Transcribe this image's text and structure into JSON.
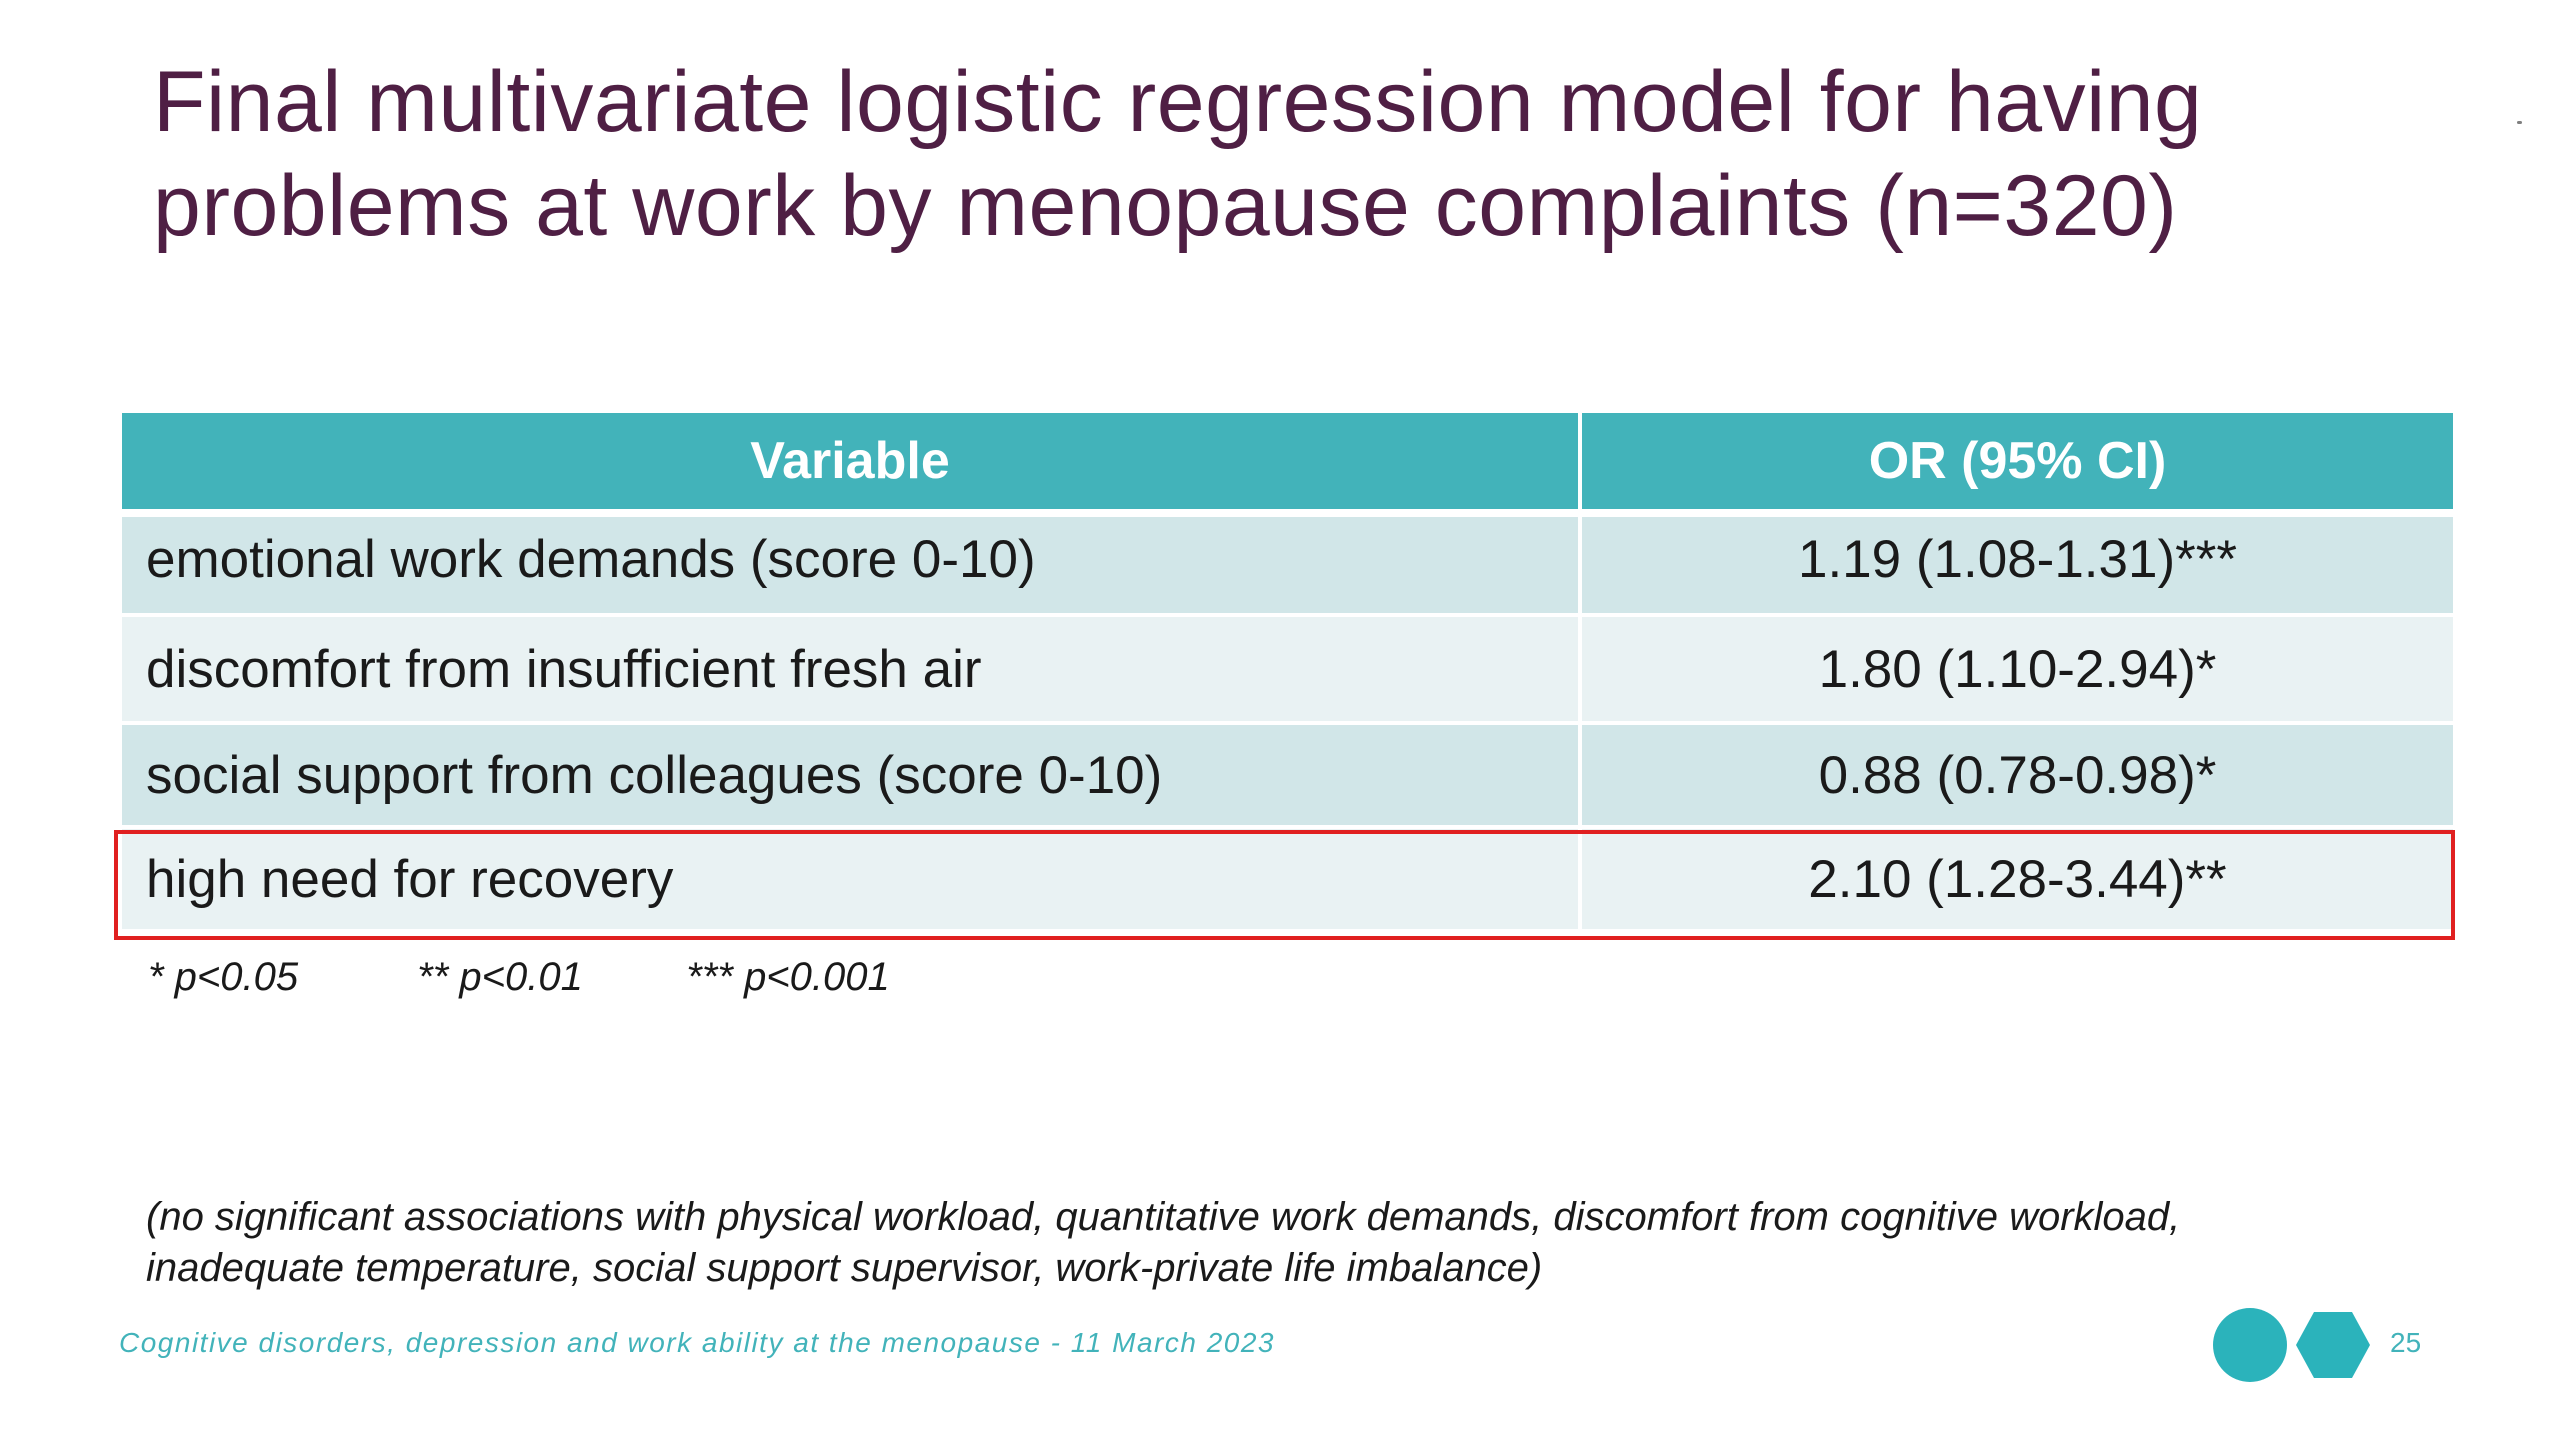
{
  "slide": {
    "title_lines": [
      "Final multivariate logistic regression model for having",
      "problems at work by menopause complaints (n=320)"
    ],
    "table": {
      "headers": [
        "Variable",
        "OR (95% CI)"
      ],
      "rows": [
        {
          "variable": "emotional work demands (score 0-10)",
          "or_ci": "1.19 (1.08-1.31)***",
          "highlighted": false
        },
        {
          "variable": "discomfort from insufficient fresh air",
          "or_ci": "1.80 (1.10-2.94)*",
          "highlighted": false
        },
        {
          "variable": "social support from colleagues (score 0-10)",
          "or_ci": "0.88 (0.78-0.98)*",
          "highlighted": false
        },
        {
          "variable": "high need for recovery",
          "or_ci": "2.10 (1.28-3.44)**",
          "highlighted": true
        }
      ]
    },
    "significance_legend": [
      "* p<0.05",
      "** p<0.01",
      "*** p<0.001"
    ],
    "note_lines": [
      "(no significant associations with physical workload, quantitative work demands, discomfort from cognitive workload,",
      "inadequate temperature, social support supervisor, work-private life imbalance)"
    ],
    "footer_text": "Cognitive disorders, depression and work ability at the menopause  - 11 March 2023",
    "page_number": "25",
    "colors": {
      "title": "#4f1f44",
      "header_bg": "#42b3ba",
      "row_dark": "#d1e6e8",
      "row_light": "#e9f2f3",
      "highlight_border": "#e02020",
      "footer": "#42b3ba",
      "logo": "#2bb3bb"
    },
    "logo_icon": "circle-and-hexagon-logo"
  }
}
